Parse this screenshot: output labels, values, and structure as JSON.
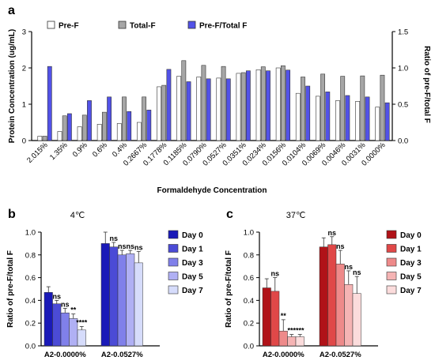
{
  "chart_data": [
    {
      "panel": "a",
      "type": "bar",
      "xlabel": "Formaldehyde Concentration",
      "ylabel": "Protein Concentration (ug/mL)",
      "ylabel_right": "Ratio of  pre-F/total F",
      "ylim": [
        0,
        3
      ],
      "yticks": [
        "0",
        "1",
        "2",
        "3"
      ],
      "ylim_right": [
        0,
        1.5
      ],
      "yticks_right": [
        "0.0",
        "0.5",
        "1.0",
        "1.5"
      ],
      "legend_position": "top-left",
      "categories": [
        "2.015%",
        "1.35%",
        "0.9%",
        "0.6%",
        "0.4%",
        "0.2667%",
        "0.1778%",
        "0.1185%",
        "0.0790%",
        "0.0527%",
        "0.0351%",
        "0.0234%",
        "0.0156%",
        "0.0104%",
        "0.0069%",
        "0.0046%",
        "0.0031%",
        "0.0000%"
      ],
      "series": [
        {
          "name": "Pre-F",
          "axis": "left",
          "color": "#ffffff",
          "values": [
            0.12,
            0.25,
            0.38,
            0.45,
            0.47,
            0.5,
            1.48,
            1.77,
            1.75,
            1.72,
            1.85,
            1.95,
            2.0,
            1.3,
            1.22,
            1.1,
            1.08,
            0.92
          ]
        },
        {
          "name": "Total-F",
          "axis": "left",
          "color": "#a6a6a6",
          "values": [
            0.12,
            0.68,
            0.7,
            0.78,
            1.2,
            1.2,
            1.52,
            2.2,
            2.07,
            2.04,
            1.87,
            2.03,
            2.06,
            1.75,
            1.83,
            1.77,
            1.78,
            1.8
          ]
        },
        {
          "name": "Pre-F/Total F",
          "axis": "right",
          "color": "#5252e8",
          "values": [
            1.02,
            0.37,
            0.55,
            0.6,
            0.4,
            0.42,
            0.98,
            0.81,
            0.85,
            0.85,
            0.96,
            0.96,
            0.97,
            0.75,
            0.67,
            0.62,
            0.6,
            0.52
          ]
        }
      ]
    },
    {
      "panel": "b",
      "type": "bar",
      "title": "4℃",
      "ylabel": "Ratio of  pre-F/total F",
      "ylim": [
        0,
        1.0
      ],
      "yticks": [
        "0.0",
        "0.2",
        "0.4",
        "0.6",
        "0.8",
        "1.0"
      ],
      "legend_position": "right",
      "categories": [
        "A2-0.0000%",
        "A2-0.0527%"
      ],
      "series": [
        {
          "name": "Day 0",
          "color": "#1a1ab8",
          "values": [
            0.47,
            0.9
          ],
          "errors": [
            0.05,
            0.1
          ],
          "sig": [
            "",
            ""
          ]
        },
        {
          "name": "Day 1",
          "color": "#4b4bd6",
          "values": [
            0.37,
            0.87
          ],
          "errors": [
            0.03,
            0.04
          ],
          "sig": [
            "ns",
            "ns"
          ]
        },
        {
          "name": "Day 3",
          "color": "#8080ea",
          "values": [
            0.29,
            0.8
          ],
          "errors": [
            0.04,
            0.04
          ],
          "sig": [
            "ns",
            "ns"
          ]
        },
        {
          "name": "Day 5",
          "color": "#b0b0f4",
          "values": [
            0.24,
            0.81
          ],
          "errors": [
            0.04,
            0.03
          ],
          "sig": [
            "**",
            "ns"
          ]
        },
        {
          "name": "Day 7",
          "color": "#d6dcfb",
          "values": [
            0.14,
            0.73
          ],
          "errors": [
            0.03,
            0.1
          ],
          "sig": [
            "****",
            "ns"
          ]
        }
      ]
    },
    {
      "panel": "c",
      "type": "bar",
      "title": "37℃",
      "ylabel": "Ratio of  pre-F/total F",
      "ylim": [
        0,
        1.0
      ],
      "yticks": [
        "0.0",
        "0.2",
        "0.4",
        "0.6",
        "0.8",
        "1.0"
      ],
      "legend_position": "right",
      "categories": [
        "A2-0.0000%",
        "A2-0.0527%"
      ],
      "series": [
        {
          "name": "Day 0",
          "color": "#b01218",
          "values": [
            0.51,
            0.87
          ],
          "errors": [
            0.08,
            0.08
          ],
          "sig": [
            "",
            ""
          ]
        },
        {
          "name": "Day 1",
          "color": "#e04848",
          "values": [
            0.48,
            0.89
          ],
          "errors": [
            0.12,
            0.07
          ],
          "sig": [
            "ns",
            "ns"
          ]
        },
        {
          "name": "Day 3",
          "color": "#ee8a8a",
          "values": [
            0.13,
            0.72
          ],
          "errors": [
            0.1,
            0.12
          ],
          "sig": [
            "**",
            "ns"
          ]
        },
        {
          "name": "Day 5",
          "color": "#f5b4b4",
          "values": [
            0.08,
            0.54
          ],
          "errors": [
            0.02,
            0.12
          ],
          "sig": [
            "***",
            "ns"
          ]
        },
        {
          "name": "Day 7",
          "color": "#fbdcdc",
          "values": [
            0.08,
            0.46
          ],
          "errors": [
            0.02,
            0.15
          ],
          "sig": [
            "***",
            "ns"
          ]
        }
      ]
    }
  ]
}
